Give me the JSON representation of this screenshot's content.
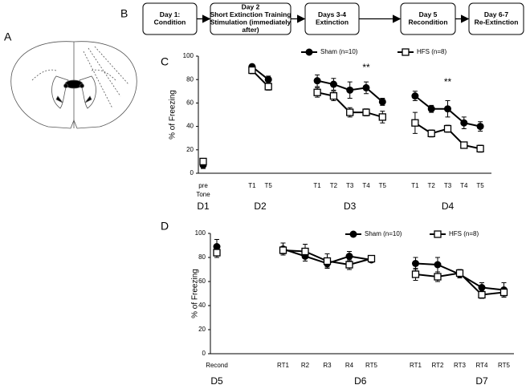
{
  "panels": [
    "A",
    "B",
    "C",
    "D"
  ],
  "flow": {
    "steps": [
      [
        "Day 1:",
        "Condition"
      ],
      [
        "Day 2",
        "Short Extinction Training",
        "Stimulation (immediately",
        "after)"
      ],
      [
        "Days 3-4",
        "Extinction"
      ],
      [
        "Day 5",
        "Recondition"
      ],
      [
        "Day 6-7",
        "Re-Extinction"
      ]
    ]
  },
  "chart_data": [
    {
      "type": "line",
      "y_label": "% of Freezing",
      "categories": [
        "pre Tone",
        null,
        null,
        "T1",
        "T5",
        null,
        null,
        "T1",
        "T2",
        "T3",
        "T4",
        "T5",
        null,
        "T1",
        "T2",
        "T3",
        "T4",
        "T5"
      ],
      "group_labels": [
        "D1",
        "D2",
        "D3",
        "D4"
      ],
      "annotations": [
        "**",
        "**"
      ],
      "ylim": [
        0,
        100
      ],
      "yticks": [
        0,
        20,
        40,
        60,
        80,
        100
      ],
      "series": [
        {
          "name": "Sham (n=10)",
          "color": "#000000",
          "marker": "circle",
          "values": [
            7,
            null,
            null,
            91,
            80,
            null,
            null,
            79,
            76,
            71,
            73,
            61,
            null,
            66,
            55,
            55,
            43,
            40
          ],
          "errors": [
            3,
            null,
            null,
            2,
            3,
            null,
            null,
            5,
            5,
            7,
            5,
            3,
            null,
            4,
            3,
            7,
            5,
            4
          ]
        },
        {
          "name": "HFS (n=8)",
          "color": "#000000",
          "marker": "square",
          "values": [
            10,
            null,
            null,
            88,
            74,
            null,
            null,
            69,
            66,
            52,
            52,
            48,
            null,
            43,
            34,
            38,
            24,
            21
          ],
          "errors": [
            2,
            null,
            null,
            3,
            3,
            null,
            null,
            4,
            4,
            4,
            3,
            5,
            null,
            9,
            3,
            3,
            2,
            3
          ]
        }
      ]
    },
    {
      "type": "line",
      "y_label": "% of Freezing",
      "categories": [
        "Recond",
        null,
        null,
        "RT1",
        "R2",
        "R3",
        "R4",
        "RT5",
        null,
        "RT1",
        "RT2",
        "RT3",
        "RT4",
        "RT5"
      ],
      "group_labels": [
        "D5",
        "D6",
        "D7"
      ],
      "ylim": [
        0,
        100
      ],
      "yticks": [
        0,
        20,
        40,
        60,
        80,
        100
      ],
      "series": [
        {
          "name": "Sham (n=10)",
          "color": "#000000",
          "marker": "circle",
          "values": [
            89,
            null,
            null,
            87,
            81,
            75,
            81,
            78,
            null,
            75,
            74,
            66,
            55,
            53
          ],
          "errors": [
            6,
            null,
            null,
            5,
            4,
            3,
            4,
            2,
            null,
            5,
            6,
            3,
            4,
            6
          ]
        },
        {
          "name": "HFS (n=8)",
          "color": "#000000",
          "marker": "square",
          "values": [
            84,
            null,
            null,
            86,
            85,
            77,
            74,
            79,
            null,
            66,
            64,
            67,
            49,
            51
          ],
          "errors": [
            4,
            null,
            null,
            3,
            6,
            6,
            4,
            2,
            null,
            5,
            4,
            3,
            3,
            3
          ]
        }
      ]
    }
  ]
}
